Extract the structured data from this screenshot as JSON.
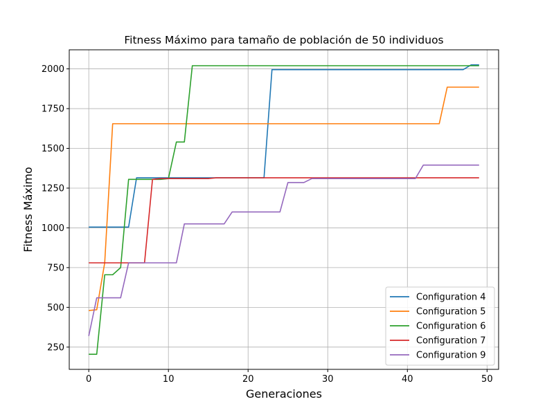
{
  "chart_data": {
    "type": "line",
    "title": "Fitness Máximo para tamaño de población de 50 individuos",
    "xlabel": "Generaciones",
    "ylabel": "Fitness Máximo",
    "xlim": [
      -2.45,
      51.45
    ],
    "ylim": [
      110,
      2120
    ],
    "xticks": [
      0,
      10,
      20,
      30,
      40,
      50
    ],
    "yticks": [
      250,
      500,
      750,
      1000,
      1250,
      1500,
      1750,
      2000
    ],
    "grid": true,
    "legend_position": "lower-right",
    "series": [
      {
        "name": "Configuration 4",
        "color": "#1f77b4",
        "x": [
          0,
          1,
          2,
          3,
          4,
          5,
          6,
          7,
          8,
          9,
          10,
          11,
          12,
          13,
          14,
          15,
          16,
          17,
          18,
          19,
          20,
          21,
          22,
          23,
          24,
          25,
          26,
          27,
          28,
          29,
          30,
          31,
          32,
          33,
          34,
          35,
          36,
          37,
          38,
          39,
          40,
          41,
          42,
          43,
          44,
          45,
          46,
          47,
          48,
          49
        ],
        "y": [
          1005,
          1005,
          1005,
          1005,
          1005,
          1005,
          1315,
          1315,
          1315,
          1315,
          1315,
          1315,
          1315,
          1315,
          1315,
          1315,
          1315,
          1315,
          1315,
          1315,
          1315,
          1315,
          1315,
          1995,
          1995,
          1995,
          1995,
          1995,
          1995,
          1995,
          1995,
          1995,
          1995,
          1995,
          1995,
          1995,
          1995,
          1995,
          1995,
          1995,
          1995,
          1995,
          1995,
          1995,
          1995,
          1995,
          1995,
          1995,
          2025,
          2025
        ]
      },
      {
        "name": "Configuration 5",
        "color": "#ff7f0e",
        "x": [
          0,
          1,
          2,
          3,
          4,
          5,
          6,
          7,
          8,
          9,
          10,
          11,
          12,
          13,
          14,
          15,
          16,
          17,
          18,
          19,
          20,
          21,
          22,
          23,
          24,
          25,
          26,
          27,
          28,
          29,
          30,
          31,
          32,
          33,
          34,
          35,
          36,
          37,
          38,
          39,
          40,
          41,
          42,
          43,
          44,
          45,
          46,
          47,
          48,
          49
        ],
        "y": [
          480,
          485,
          780,
          1655,
          1655,
          1655,
          1655,
          1655,
          1655,
          1655,
          1655,
          1655,
          1655,
          1655,
          1655,
          1655,
          1655,
          1655,
          1655,
          1655,
          1655,
          1655,
          1655,
          1655,
          1655,
          1655,
          1655,
          1655,
          1655,
          1655,
          1655,
          1655,
          1655,
          1655,
          1655,
          1655,
          1655,
          1655,
          1655,
          1655,
          1655,
          1655,
          1655,
          1655,
          1655,
          1885,
          1885,
          1885,
          1885,
          1885
        ]
      },
      {
        "name": "Configuration 6",
        "color": "#2ca02c",
        "x": [
          0,
          1,
          2,
          3,
          4,
          5,
          6,
          7,
          8,
          9,
          10,
          11,
          12,
          13,
          14,
          15,
          16,
          17,
          18,
          19,
          20,
          21,
          22,
          23,
          24,
          25,
          26,
          27,
          28,
          29,
          30,
          31,
          32,
          33,
          34,
          35,
          36,
          37,
          38,
          39,
          40,
          41,
          42,
          43,
          44,
          45,
          46,
          47,
          48,
          49
        ],
        "y": [
          205,
          205,
          705,
          705,
          750,
          1305,
          1305,
          1305,
          1305,
          1305,
          1310,
          1540,
          1540,
          2020,
          2020,
          2020,
          2020,
          2020,
          2020,
          2020,
          2020,
          2020,
          2020,
          2020,
          2020,
          2020,
          2020,
          2020,
          2020,
          2020,
          2020,
          2020,
          2020,
          2020,
          2020,
          2020,
          2020,
          2020,
          2020,
          2020,
          2020,
          2020,
          2020,
          2020,
          2020,
          2020,
          2020,
          2020,
          2020,
          2020
        ]
      },
      {
        "name": "Configuration 7",
        "color": "#d62728",
        "x": [
          0,
          1,
          2,
          3,
          4,
          5,
          6,
          7,
          8,
          9,
          10,
          11,
          12,
          13,
          14,
          15,
          16,
          17,
          18,
          19,
          20,
          21,
          22,
          23,
          24,
          25,
          26,
          27,
          28,
          29,
          30,
          31,
          32,
          33,
          34,
          35,
          36,
          37,
          38,
          39,
          40,
          41,
          42,
          43,
          44,
          45,
          46,
          47,
          48,
          49
        ],
        "y": [
          780,
          780,
          780,
          780,
          780,
          780,
          780,
          780,
          1305,
          1310,
          1310,
          1310,
          1310,
          1310,
          1310,
          1310,
          1315,
          1315,
          1315,
          1315,
          1315,
          1315,
          1315,
          1315,
          1315,
          1315,
          1315,
          1315,
          1315,
          1315,
          1315,
          1315,
          1315,
          1315,
          1315,
          1315,
          1315,
          1315,
          1315,
          1315,
          1315,
          1315,
          1315,
          1315,
          1315,
          1315,
          1315,
          1315,
          1315,
          1315
        ]
      },
      {
        "name": "Configuration 9",
        "color": "#9467bd",
        "x": [
          0,
          1,
          2,
          3,
          4,
          5,
          6,
          7,
          8,
          9,
          10,
          11,
          12,
          13,
          14,
          15,
          16,
          17,
          18,
          19,
          20,
          21,
          22,
          23,
          24,
          25,
          26,
          27,
          28,
          29,
          30,
          31,
          32,
          33,
          34,
          35,
          36,
          37,
          38,
          39,
          40,
          41,
          42,
          43,
          44,
          45,
          46,
          47,
          48,
          49
        ],
        "y": [
          320,
          560,
          560,
          560,
          560,
          780,
          780,
          780,
          780,
          780,
          780,
          780,
          1025,
          1025,
          1025,
          1025,
          1025,
          1025,
          1100,
          1100,
          1100,
          1100,
          1100,
          1100,
          1100,
          1285,
          1285,
          1285,
          1310,
          1310,
          1310,
          1310,
          1310,
          1310,
          1310,
          1310,
          1310,
          1310,
          1310,
          1310,
          1310,
          1310,
          1395,
          1395,
          1395,
          1395,
          1395,
          1395,
          1395,
          1395
        ]
      }
    ]
  }
}
